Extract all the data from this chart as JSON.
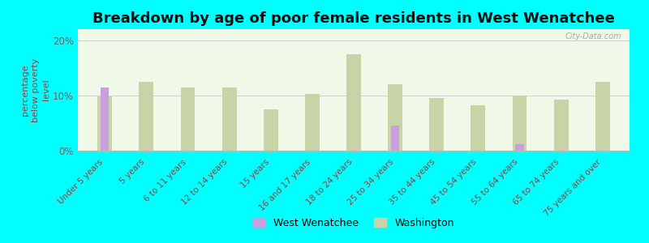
{
  "title": "Breakdown by age of poor female residents in West Wenatchee",
  "categories": [
    "Under 5 years",
    "5 years",
    "6 to 11 years",
    "12 to 14 years",
    "15 years",
    "16 and 17 years",
    "18 to 24 years",
    "25 to 34 years",
    "35 to 44 years",
    "45 to 54 years",
    "55 to 64 years",
    "65 to 74 years",
    "75 years and over"
  ],
  "west_wenatchee": [
    11.5,
    0,
    0,
    0,
    0,
    0,
    0,
    4.5,
    0,
    0,
    1.2,
    0,
    0
  ],
  "washington": [
    9.8,
    12.5,
    11.5,
    11.5,
    7.5,
    10.2,
    17.5,
    12.0,
    9.5,
    8.2,
    10.0,
    9.2,
    12.5
  ],
  "bar_color_ww": "#c9a0dc",
  "bar_color_wa": "#c8d4a8",
  "plot_bg_top": "#d8ead8",
  "plot_bg_bottom": "#f0f8e8",
  "outer_bg": "#00ffff",
  "ylabel": "percentage\nbelow poverty\nlevel",
  "ylim": [
    0,
    22
  ],
  "yticks": [
    0,
    10,
    20
  ],
  "ytick_labels": [
    "0%",
    "10%",
    "20%"
  ],
  "title_fontsize": 13,
  "tick_label_color": "#884444",
  "ylabel_color": "#884444",
  "legend_labels": [
    "West Wenatchee",
    "Washington"
  ],
  "watermark": "City-Data.com"
}
